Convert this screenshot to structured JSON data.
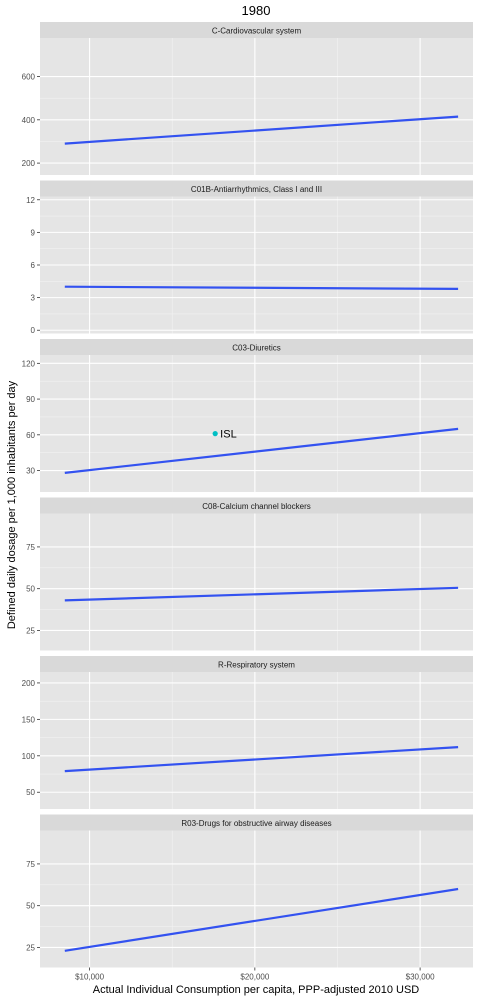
{
  "title": "1980",
  "xlabel": "Actual Individual Consumption per capita, PPP-adjusted 2010 USD",
  "ylabel": "Defined daily dosage per 1,000 inhabitants per day",
  "colors": {
    "line": "#3352f0",
    "point": "#00bfc4",
    "panel_bg": "#e5e5e5",
    "strip_bg": "#d9d9d9",
    "grid": "#ffffff"
  },
  "chart_data": [
    {
      "type": "line",
      "panel": "C-Cardiovascular system",
      "xlim": [
        7000,
        33200
      ],
      "ylim": [
        145,
        778
      ],
      "xticks": [
        10000,
        20000,
        30000
      ],
      "yticks": [
        200,
        400,
        600
      ],
      "series": [
        {
          "x": [
            8500,
            32300
          ],
          "y": [
            290,
            415
          ]
        }
      ],
      "points": []
    },
    {
      "type": "line",
      "panel": "C01B-Antiarrhythmics, Class I and III",
      "xlim": [
        7000,
        33200
      ],
      "ylim": [
        -0.3,
        12.3
      ],
      "xticks": [
        10000,
        20000,
        30000
      ],
      "yticks": [
        0,
        3,
        6,
        9,
        12
      ],
      "series": [
        {
          "x": [
            8500,
            32300
          ],
          "y": [
            4.0,
            3.8
          ]
        }
      ],
      "points": []
    },
    {
      "type": "line",
      "panel": "C03-Diuretics",
      "xlim": [
        7000,
        33200
      ],
      "ylim": [
        12,
        127
      ],
      "xticks": [
        10000,
        20000,
        30000
      ],
      "yticks": [
        30,
        60,
        90,
        120
      ],
      "series": [
        {
          "x": [
            8500,
            32300
          ],
          "y": [
            28,
            65
          ]
        }
      ],
      "points": [
        {
          "x": 17600,
          "y": 61,
          "label": "ISL"
        }
      ]
    },
    {
      "type": "line",
      "panel": "C08-Calcium channel blockers",
      "xlim": [
        7000,
        33200
      ],
      "ylim": [
        13,
        95
      ],
      "xticks": [
        10000,
        20000,
        30000
      ],
      "yticks": [
        25,
        50,
        75
      ],
      "series": [
        {
          "x": [
            8500,
            32300
          ],
          "y": [
            43,
            50.5
          ]
        }
      ],
      "points": []
    },
    {
      "type": "line",
      "panel": "R-Respiratory system",
      "xlim": [
        7000,
        33200
      ],
      "ylim": [
        27,
        215
      ],
      "xticks": [
        10000,
        20000,
        30000
      ],
      "yticks": [
        50,
        100,
        150,
        200
      ],
      "series": [
        {
          "x": [
            8500,
            32300
          ],
          "y": [
            79,
            112
          ]
        }
      ],
      "points": []
    },
    {
      "type": "line",
      "panel": "R03-Drugs for obstructive airway diseases",
      "xlim": [
        7000,
        33200
      ],
      "ylim": [
        13,
        95
      ],
      "xticks": [
        10000,
        20000,
        30000
      ],
      "xticklabels": [
        "$10,000",
        "$20,000",
        "$30,000"
      ],
      "yticks": [
        25,
        50,
        75
      ],
      "series": [
        {
          "x": [
            8500,
            32300
          ],
          "y": [
            23,
            60
          ]
        }
      ],
      "points": []
    }
  ]
}
